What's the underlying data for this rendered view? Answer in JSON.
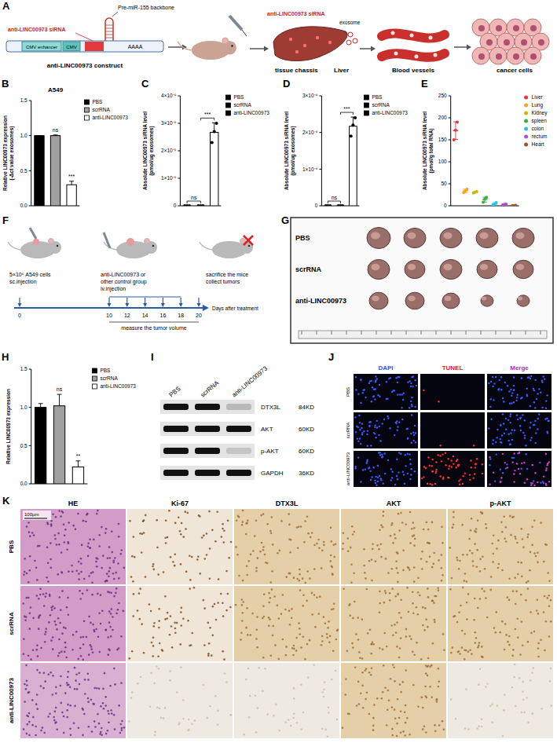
{
  "chart_data": [
    {
      "type": "bar",
      "title": "A549",
      "y_label": "Relative LINC00973 expression (-Δct value exosomes)",
      "categories": [
        "PBS",
        "scrRNA",
        "anti-LINC00973"
      ],
      "values": [
        1.0,
        1.0,
        0.3
      ],
      "errors": [
        0,
        0.01,
        0.05
      ],
      "colors": [
        "#000000",
        "#a0a0a0",
        "#ffffff"
      ],
      "ylim": [
        0,
        1.5
      ],
      "yticks": [
        {
          "value": 0,
          "label": "0.0"
        },
        {
          "value": 0.5,
          "label": "0.5"
        },
        {
          "value": 1,
          "label": "1.0"
        },
        {
          "value": 1.5,
          "label": "1.5"
        }
      ],
      "tick_labels": "y",
      "legend": "upper right",
      "annotations": [
        {
          "text": "ns",
          "category": 1
        },
        {
          "text": "***",
          "category": 2
        }
      ]
    },
    {
      "type": "bar",
      "y_label": "Absolute LINC00973 siRNA level (pmol/ug exosomes)",
      "categories": [
        "PBS",
        "scrRNA",
        "anti-LINC00973"
      ],
      "values": [
        0,
        0,
        2.67e-05
      ],
      "errors": [
        0,
        0,
        3.5e-06
      ],
      "points": [
        [
          0,
          0,
          0
        ],
        [
          0,
          0,
          0
        ],
        [
          2.3e-05,
          2.7e-05,
          3e-05
        ]
      ],
      "color": "#000000",
      "ylim": [
        0,
        4e-05
      ],
      "yticks": [
        0,
        {
          "value": 1e-05,
          "label": "1×10⁻⁵"
        },
        {
          "value": 2e-05,
          "label": "2×10⁻⁵"
        },
        {
          "value": 3e-05,
          "label": "3×10⁻⁵"
        },
        {
          "value": 4e-05,
          "label": "4×10⁻⁵"
        }
      ],
      "tick_labels": "y",
      "legend": "upper right",
      "annotations": [
        {
          "text": "ns",
          "from": 0,
          "to": 1
        },
        {
          "text": "***",
          "from": 1,
          "to": 2
        }
      ]
    },
    {
      "type": "bar",
      "y_label": "Absolute LINC00973 siRNA level (pmol/ug exosomes)",
      "categories": [
        "PBS",
        "scrRNA",
        "anti-LINC00973"
      ],
      "values": [
        0,
        0,
        0.000217
      ],
      "errors": [
        0,
        0,
        2.5e-05
      ],
      "points": [
        [
          0,
          0,
          0
        ],
        [
          0,
          0,
          0
        ],
        [
          0.00019,
          0.00022,
          0.00024
        ]
      ],
      "color": "#000000",
      "ylim": [
        0,
        0.0003
      ],
      "yticks": [
        0,
        {
          "value": 0.0001,
          "label": "1×10⁻⁴"
        },
        {
          "value": 0.0002,
          "label": "2×10⁻⁴"
        },
        {
          "value": 0.0003,
          "label": "3×10⁻⁴"
        }
      ],
      "tick_labels": "y",
      "legend": "upper right",
      "annotations": [
        {
          "text": "ns",
          "from": 0,
          "to": 1
        },
        {
          "text": "***",
          "from": 1,
          "to": 2
        }
      ]
    },
    {
      "type": "scatter",
      "y_label": "Absolute LINC00973 siRNA level (pmol/g total RNA)",
      "categories": [
        "Liver",
        "Lung",
        "Kidney",
        "spleen",
        "colon",
        "rectum",
        "Heart"
      ],
      "values": [
        171,
        34,
        30.7,
        14,
        4.3,
        3,
        0.5
      ],
      "errors": [
        20,
        4,
        1.5,
        5.5,
        2.5,
        1,
        0.3
      ],
      "points": [
        [
          150,
          172,
          190
        ],
        [
          30,
          34,
          38
        ],
        [
          29,
          31,
          32
        ],
        [
          8,
          15,
          19
        ],
        [
          2,
          4,
          7
        ],
        [
          2,
          3,
          4
        ],
        [
          0.3,
          0.5,
          0.8
        ]
      ],
      "colors": [
        "#e8383d",
        "#f5a623",
        "#c9b800",
        "#3fae49",
        "#2fc0df",
        "#b04fd0",
        "#a0522d"
      ],
      "ylim": [
        0,
        250
      ],
      "yticks": [
        0,
        50,
        100,
        150,
        200,
        250
      ],
      "tick_labels": "y",
      "legend": "upper right"
    },
    {
      "type": "bar",
      "y_label": "Relative LINC00973 expression",
      "categories": [
        "PBS",
        "scrRNA",
        "anti-LINC00973"
      ],
      "values": [
        1.0,
        1.02,
        0.22
      ],
      "errors": [
        0.05,
        0.15,
        0.08
      ],
      "colors": [
        "#000000",
        "#a0a0a0",
        "#ffffff"
      ],
      "ylim": [
        0,
        1.5
      ],
      "yticks": [
        {
          "value": 0,
          "label": "0.0"
        },
        {
          "value": 0.5,
          "label": "0.5"
        },
        {
          "value": 1,
          "label": "1.0"
        },
        {
          "value": 1.5,
          "label": "1.5"
        }
      ],
      "tick_labels": "y",
      "legend": "upper right",
      "annotations": [
        {
          "text": "ns",
          "category": 1
        },
        {
          "text": "**",
          "category": 2
        }
      ]
    }
  ],
  "figure": {
    "letters": [
      "A",
      "B",
      "C",
      "D",
      "E",
      "F",
      "G",
      "H",
      "I",
      "J",
      "K"
    ],
    "A": {
      "construct": {
        "sirna": "anti-LINC00973 siRNA",
        "backbone": "Pre-miR-155 backbone",
        "enhancer": "CMV enhancer",
        "promoter": "CMV",
        "polya": "AAAA",
        "title": "anti-LINC00973 construct"
      },
      "steps": {
        "sirna": "anti-LINC00973 siRNA",
        "exosome": "exosome",
        "chassis": "tissue chassis",
        "liver": "Liver",
        "vessels": "Blood vessels",
        "cells": "cancer cells"
      }
    },
    "F": {
      "implant": [
        "5×10⁶ A549 cells",
        "sc.injection"
      ],
      "treatment": [
        "anti-LINC00973 or",
        "other control group",
        "iv.injection"
      ],
      "end": [
        "sacrifice the mice",
        "collect tumors"
      ],
      "days": [
        0,
        10,
        12,
        14,
        16,
        18,
        20
      ],
      "measure": "measure the tumor volume",
      "axis_label": "Days after treatment"
    },
    "G": {
      "rows": [
        "PBS",
        "scrRNA",
        "anti-LINC00973"
      ]
    },
    "I": {
      "columns": [
        "PBS",
        "scrRNA",
        "anti-LINC00973"
      ],
      "rows": [
        {
          "protein": "DTX3L",
          "size": "84KD"
        },
        {
          "protein": "AKT",
          "size": "60KD"
        },
        {
          "protein": "p-AKT",
          "size": "60KD"
        },
        {
          "protein": "GAPDH",
          "size": "36KD"
        }
      ]
    },
    "J": {
      "columns": [
        "DAPI",
        "TUNEL",
        "Merge"
      ],
      "rows": [
        "PBS",
        "scrRNA",
        "anti-LINC00973"
      ]
    },
    "K": {
      "columns": [
        "HE",
        "Ki-67",
        "DTX3L",
        "AKT",
        "p-AKT"
      ],
      "rows": [
        "PBS",
        "scrRNA",
        "anti-LINC00973"
      ],
      "scale_bar": "100μm"
    }
  }
}
